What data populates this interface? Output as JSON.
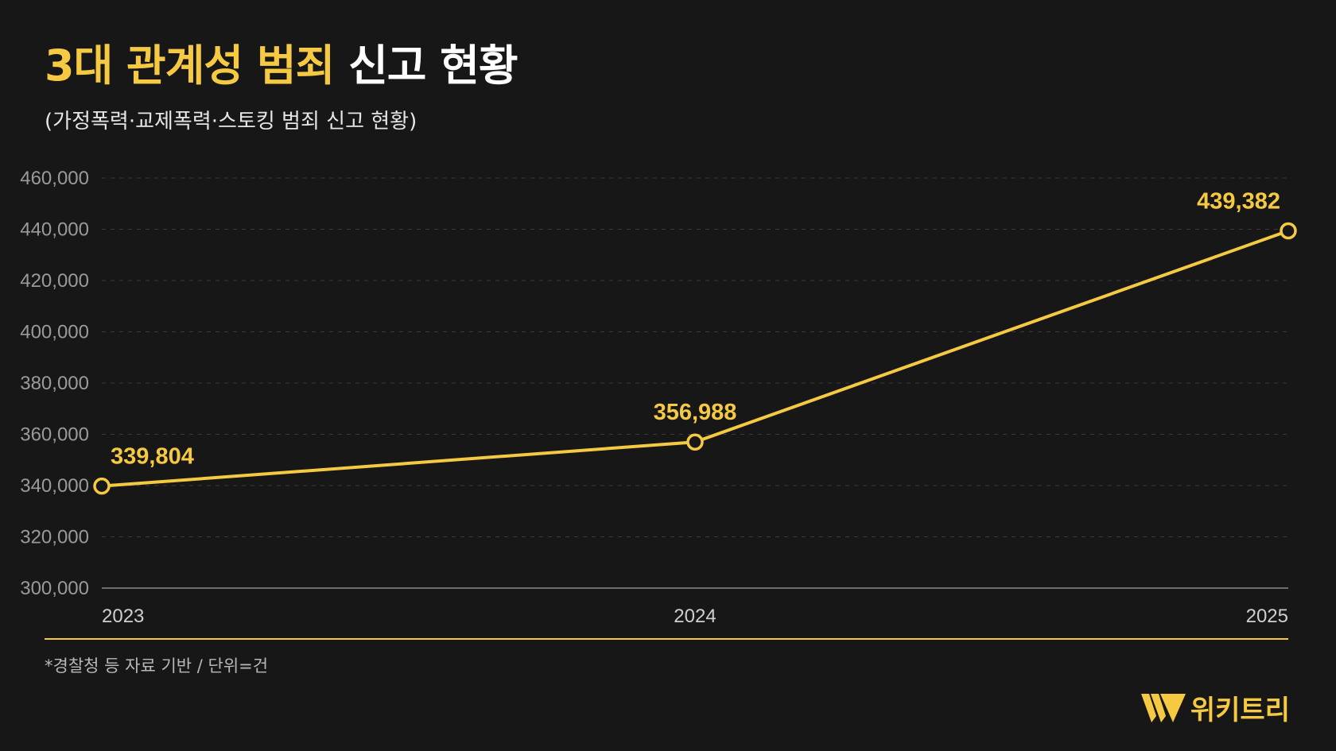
{
  "header": {
    "title_accent": "3대 관계성 범죄",
    "title_rest": "신고 현황",
    "subtitle": "(가정폭력·교제폭력·스토킹 범죄 신고 현황)"
  },
  "chart_data": {
    "type": "line",
    "x": [
      "2023",
      "2024",
      "2025"
    ],
    "series": [
      {
        "values": [
          339804,
          356988,
          439382
        ]
      }
    ],
    "data_labels": [
      "339,804",
      "356,988",
      "439,382"
    ],
    "ylim": [
      300000,
      460000
    ],
    "yticks": [
      300000,
      320000,
      340000,
      360000,
      380000,
      400000,
      420000,
      440000,
      460000
    ],
    "ytick_labels": [
      "300,000",
      "320,000",
      "340,000",
      "360,000",
      "380,000",
      "400,000",
      "420,000",
      "440,000",
      "460,000"
    ],
    "grid": true,
    "colors": {
      "line": "#f5c942",
      "grid": "#3a3a3a",
      "axis": "#8a8a8a",
      "background": "#171717"
    }
  },
  "footer": {
    "note": "*경찰청 등 자료 기반 / 단위=건",
    "brand": "위키트리",
    "brand_icon": "wikitree-w-logo-icon"
  }
}
